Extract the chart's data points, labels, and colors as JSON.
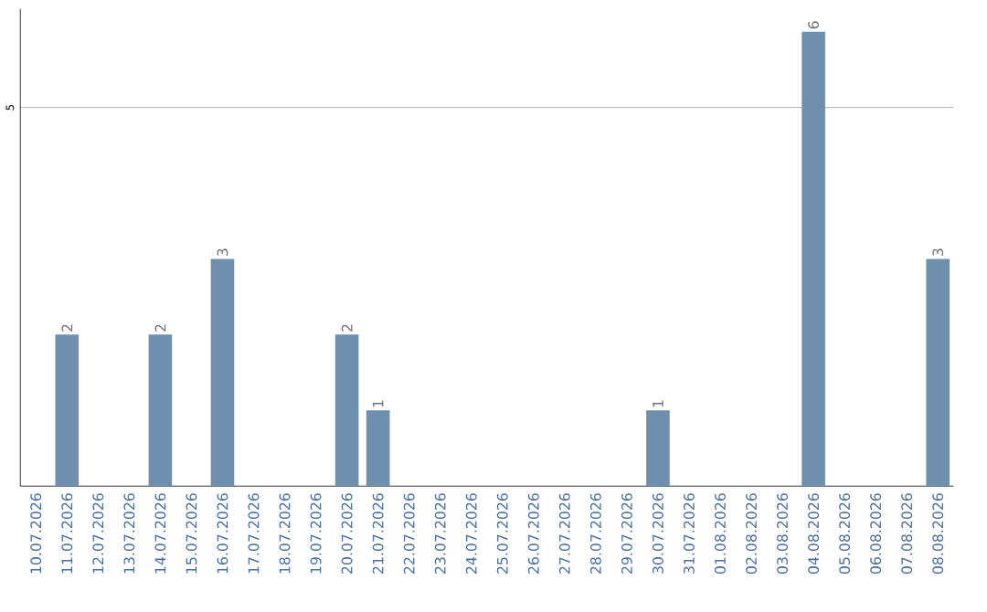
{
  "chart_data": {
    "type": "bar",
    "categories": [
      "10.07.2026",
      "11.07.2026",
      "12.07.2026",
      "13.07.2026",
      "14.07.2026",
      "15.07.2026",
      "16.07.2026",
      "17.07.2026",
      "18.07.2026",
      "19.07.2026",
      "20.07.2026",
      "21.07.2026",
      "22.07.2026",
      "23.07.2026",
      "24.07.2026",
      "25.07.2026",
      "26.07.2026",
      "27.07.2026",
      "28.07.2026",
      "29.07.2026",
      "30.07.2026",
      "31.07.2026",
      "01.08.2026",
      "02.08.2026",
      "03.08.2026",
      "04.08.2026",
      "05.08.2026",
      "06.08.2026",
      "07.08.2026",
      "08.08.2026"
    ],
    "values": [
      0,
      2,
      0,
      0,
      2,
      0,
      3,
      0,
      0,
      0,
      2,
      1,
      0,
      0,
      0,
      0,
      0,
      0,
      0,
      0,
      1,
      0,
      0,
      0,
      0,
      6,
      0,
      0,
      0,
      3
    ],
    "value_labels": [
      null,
      "2",
      null,
      null,
      "2",
      null,
      "3",
      null,
      null,
      null,
      "2",
      "1",
      null,
      null,
      null,
      null,
      null,
      null,
      null,
      null,
      "1",
      null,
      null,
      null,
      null,
      "6",
      null,
      null,
      null,
      "3"
    ],
    "color": "#6e8fad",
    "ylim": [
      0,
      6.3
    ],
    "yticks": [
      5
    ],
    "grid": "y"
  }
}
